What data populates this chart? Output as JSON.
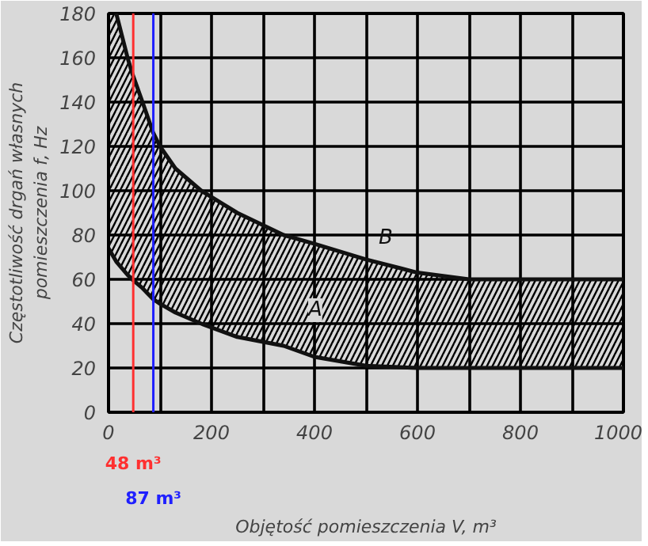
{
  "chart_data": {
    "type": "line",
    "xlabel": "Objętość pomieszczenia V, m³",
    "ylabel": "Częstotliwość drgań własnych\npomieszczenia f, Hz",
    "x": [
      0,
      15,
      37,
      46,
      66,
      87,
      100,
      130,
      180,
      250,
      340,
      400,
      500,
      600,
      700,
      800,
      900,
      1000
    ],
    "series": [
      {
        "name": "B",
        "color": "#111111",
        "x": [
          15,
          37,
          46,
          66,
          87,
          100,
          130,
          180,
          250,
          340,
          400,
          500,
          600,
          700,
          800,
          900,
          1000
        ],
        "values": [
          180,
          160,
          153,
          140,
          126,
          120,
          110,
          100,
          90,
          80,
          76,
          69,
          63,
          60,
          60,
          60,
          60
        ]
      },
      {
        "name": "A",
        "color": "#111111",
        "values": [
          74,
          68,
          62,
          60,
          56,
          51,
          49,
          45,
          40,
          34,
          30,
          25,
          21,
          20,
          20,
          20,
          20,
          20
        ],
        "lower": [
          74,
          68,
          62,
          60,
          56,
          51,
          49,
          45,
          40,
          34,
          30,
          25,
          21,
          20,
          20,
          20,
          20,
          20
        ],
        "upper": [
          180,
          180,
          160,
          153,
          140,
          126,
          120,
          110,
          100,
          90,
          80,
          76,
          69,
          63,
          60,
          60,
          60,
          60
        ]
      }
    ],
    "xlim": [
      0,
      1000
    ],
    "ylim": [
      0,
      180
    ],
    "xticks": [
      0,
      {
        "value": 100,
        "label": null
      },
      200,
      {
        "value": 300,
        "label": null
      },
      400,
      {
        "value": 500,
        "label": null
      },
      600,
      {
        "value": 700,
        "label": null
      },
      800,
      {
        "value": 900,
        "label": null
      },
      1000
    ],
    "yticks": [
      0,
      20,
      40,
      60,
      80,
      100,
      120,
      140,
      160,
      180
    ],
    "grid": true,
    "ref_lines": [
      {
        "axis": "x",
        "value": 48,
        "label": "48 m³",
        "color": "#ff3030"
      },
      {
        "axis": "x",
        "value": 87,
        "label": "87 m³",
        "color": "#2020ff"
      }
    ]
  }
}
